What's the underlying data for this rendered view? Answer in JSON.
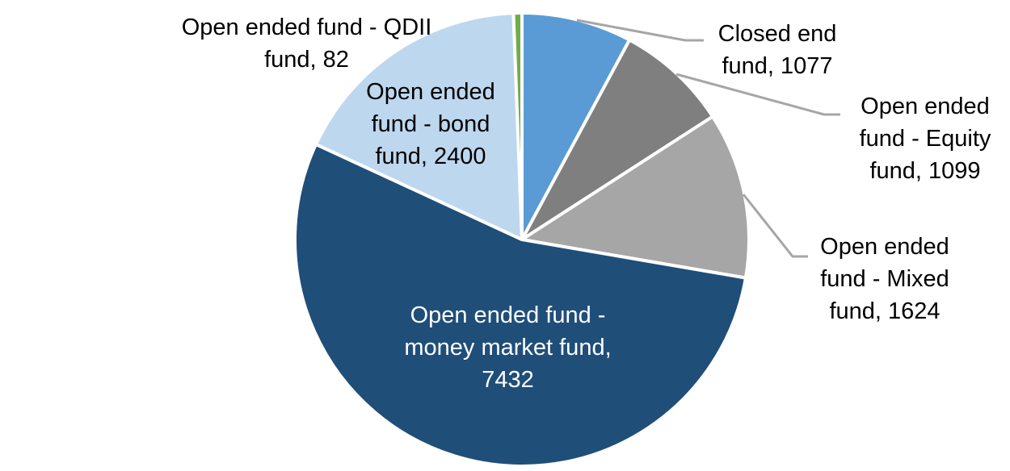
{
  "chart_data": {
    "type": "pie",
    "title": "",
    "direction": "clockwise",
    "start_angle_deg": 0,
    "background_color": "#FFFFFF",
    "slice_border_color": "#FFFFFF",
    "leader_line_color": "#A6A6A6",
    "label_format": "category, value",
    "slices": [
      {
        "id": "closed-end",
        "category": "Closed end fund",
        "value": 1077,
        "color": "#5B9BD5",
        "label_lines": [
          "Closed end",
          "fund, 1077"
        ],
        "label_color": "#000000",
        "leader_line": true
      },
      {
        "id": "equity",
        "category": "Open ended fund - Equity fund",
        "value": 1099,
        "color": "#7F7F7F",
        "label_lines": [
          "Open ended",
          "fund - Equity",
          "fund, 1099"
        ],
        "label_color": "#000000",
        "leader_line": true
      },
      {
        "id": "mixed",
        "category": "Open ended fund - Mixed fund",
        "value": 1624,
        "color": "#A6A6A6",
        "label_lines": [
          "Open ended",
          "fund - Mixed",
          "fund, 1624"
        ],
        "label_color": "#000000",
        "leader_line": true
      },
      {
        "id": "money-market",
        "category": "Open ended fund - money market fund",
        "value": 7432,
        "color": "#1F4E79",
        "label_lines": [
          "Open ended fund -",
          "money market fund,",
          "7432"
        ],
        "label_color": "#FFFFFF",
        "leader_line": false
      },
      {
        "id": "bond",
        "category": "Open ended fund - bond fund",
        "value": 2400,
        "color": "#BDD7EE",
        "label_lines": [
          "Open ended",
          "fund - bond",
          "fund, 2400"
        ],
        "label_color": "#000000",
        "leader_line": false
      },
      {
        "id": "qdii",
        "category": "Open ended fund - QDII fund",
        "value": 82,
        "color": "#70AD47",
        "label_lines": [
          "Open ended fund - QDII",
          "fund, 82"
        ],
        "label_color": "#000000",
        "leader_line": false
      }
    ]
  }
}
